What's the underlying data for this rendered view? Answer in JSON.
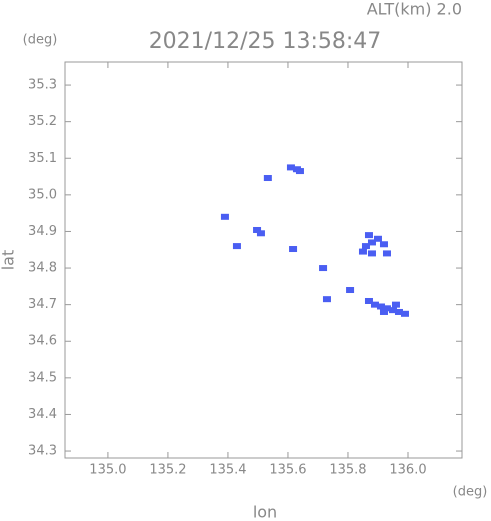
{
  "chart_data": {
    "type": "scatter",
    "title": "2021/12/25 13:58:47",
    "subtitle": "ALT(km) 2.0",
    "y_unit": "(deg)",
    "x_unit": "(deg)",
    "xlabel": "lon",
    "ylabel": "lat",
    "color": "#4a5ef2",
    "xlim": [
      134.857,
      136.18
    ],
    "ylim": [
      34.281,
      35.363
    ],
    "xticks": [
      {
        "value": 135,
        "label": "135.0"
      },
      135.2,
      135.4,
      135.6,
      135.8,
      {
        "value": 136,
        "label": "136.0"
      }
    ],
    "yticks": [
      34.3,
      34.4,
      34.5,
      34.6,
      34.7,
      34.8,
      34.9,
      {
        "value": 35,
        "label": "35.0"
      },
      35.1,
      35.2,
      35.3
    ],
    "x": [
      135.61,
      135.63,
      135.64,
      135.533,
      135.39,
      135.497,
      135.51,
      135.43,
      135.617,
      135.717,
      135.87,
      135.9,
      135.88,
      135.92,
      135.86,
      135.85,
      135.88,
      135.93,
      135.73,
      135.807,
      135.89,
      135.91,
      135.93,
      135.95,
      135.97,
      135.99,
      135.87,
      135.92,
      135.96
    ],
    "y": [
      35.075,
      35.07,
      35.065,
      35.046,
      34.94,
      34.904,
      34.895,
      34.86,
      34.852,
      34.8,
      34.89,
      34.88,
      34.87,
      34.865,
      34.86,
      34.845,
      34.84,
      34.84,
      34.715,
      34.74,
      34.7,
      34.695,
      34.69,
      34.685,
      34.68,
      34.675,
      34.71,
      34.68,
      34.7
    ]
  }
}
